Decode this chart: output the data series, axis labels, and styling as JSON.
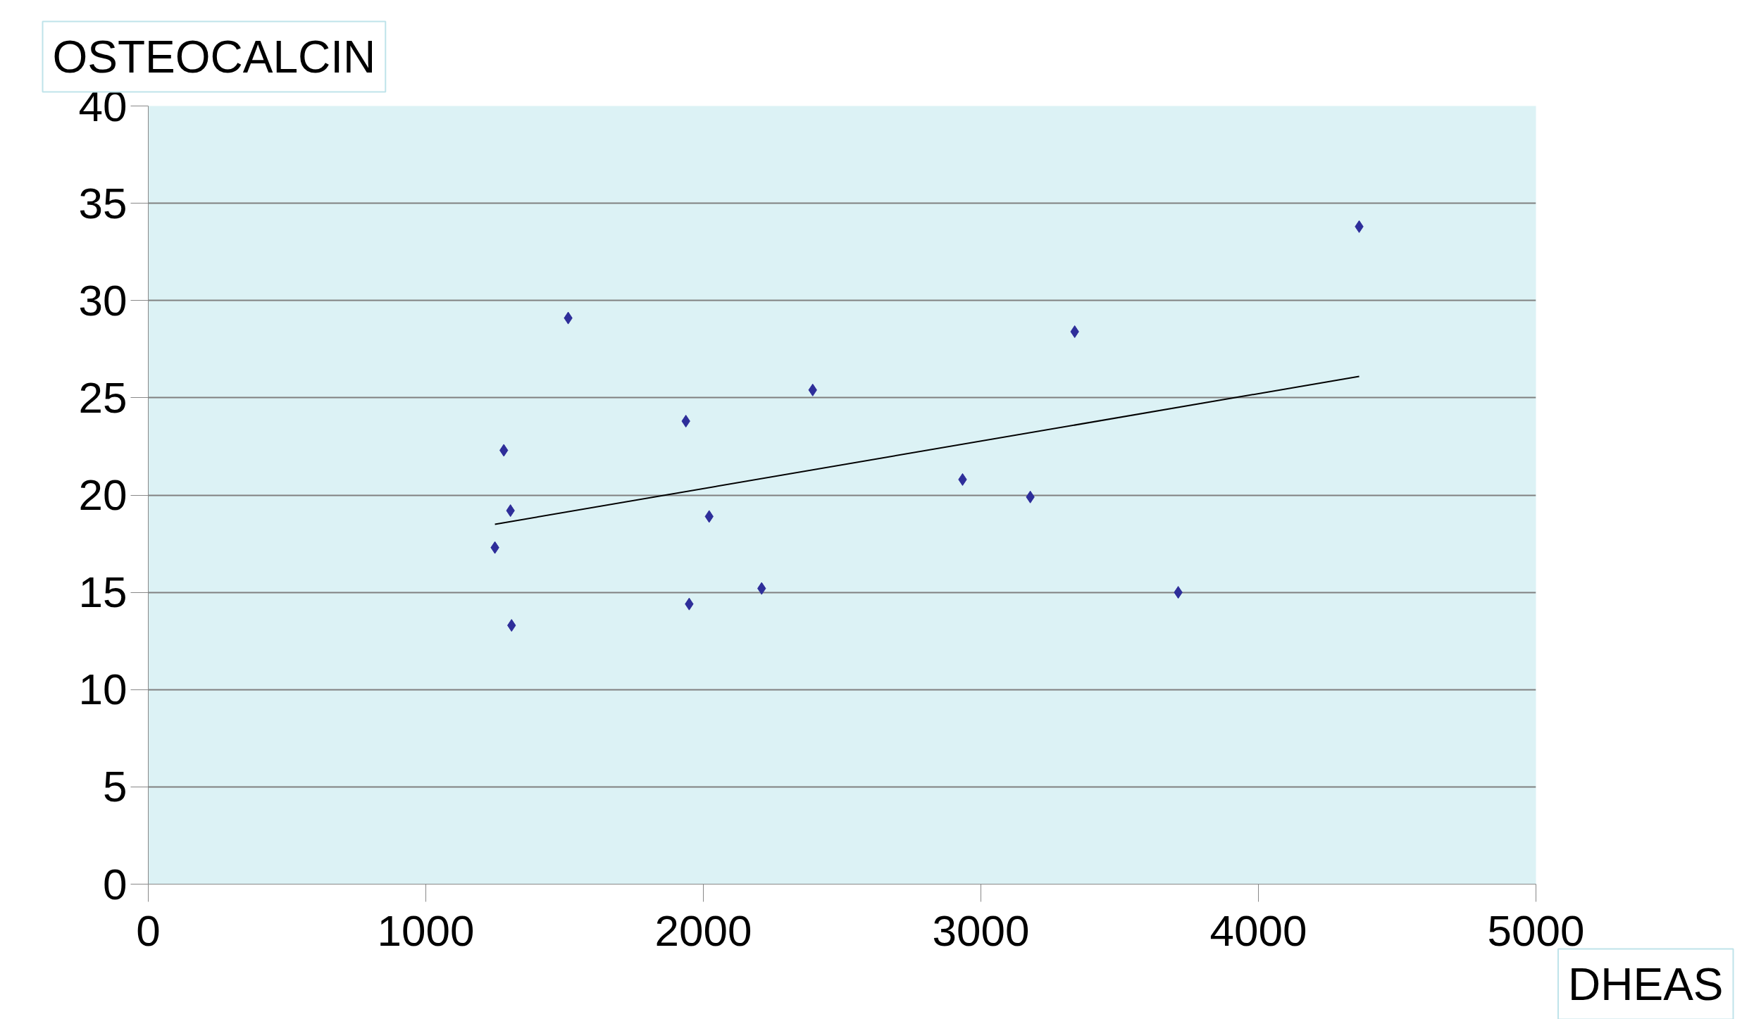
{
  "chart_data": {
    "type": "scatter",
    "xlabel": "DHEAS",
    "ylabel": "OSTEOCALCIN",
    "xlim": [
      0,
      5000
    ],
    "xticks": [
      0,
      1000,
      2000,
      3000,
      4000,
      5000
    ],
    "ylim": [
      0,
      40
    ],
    "yticks": [
      0,
      5,
      10,
      15,
      20,
      25,
      30,
      35,
      40
    ],
    "grid": "y",
    "series": [
      {
        "color": "#2e2e9a",
        "marker": "diamond",
        "x": [
          1249,
          1281,
          1305,
          1309,
          1513,
          1937,
          1949,
          2021,
          2210,
          2394,
          2934,
          3178,
          3338,
          3711,
          4363
        ],
        "values": [
          17.3,
          22.3,
          19.2,
          13.3,
          29.1,
          23.8,
          14.4,
          18.9,
          15.2,
          25.4,
          20.8,
          19.9,
          28.4,
          15.0,
          33.8
        ]
      },
      {
        "type": "line",
        "color": "#000000",
        "x": [
          1249,
          4363
        ],
        "values": [
          18.5,
          26.1
        ]
      }
    ]
  }
}
